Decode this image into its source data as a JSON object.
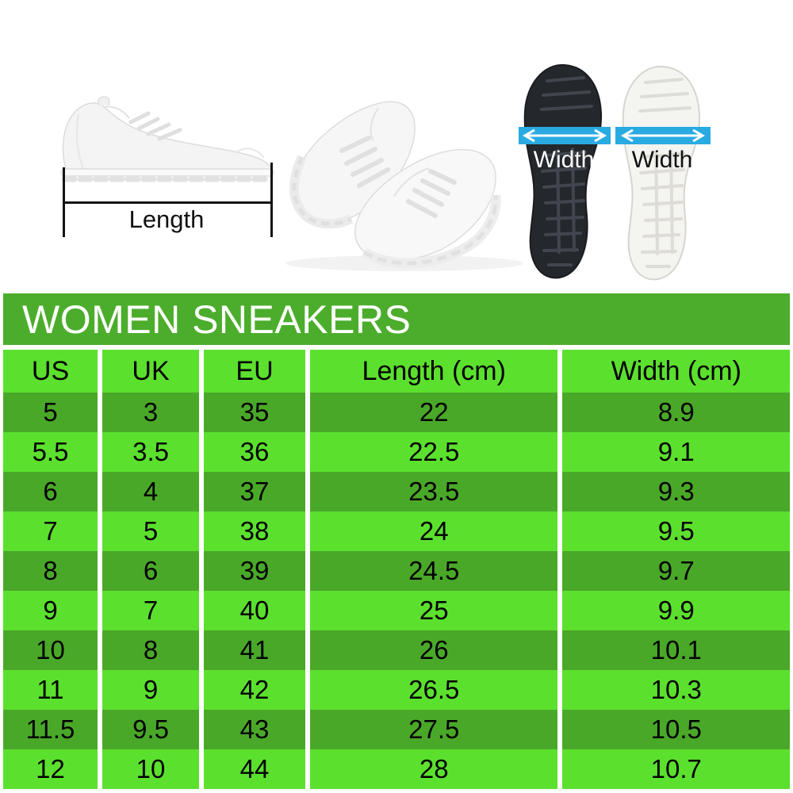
{
  "title": "WOMEN SNEAKERS",
  "figures": {
    "length_label": "Length",
    "width_label_black_sole": "Width",
    "width_label_white_sole": "Width"
  },
  "chart_data": {
    "type": "table",
    "title": "WOMEN SNEAKERS",
    "columns": [
      "US",
      "UK",
      "EU",
      "Length (cm)",
      "Width (cm)"
    ],
    "rows": [
      [
        "5",
        "3",
        "35",
        "22",
        "8.9"
      ],
      [
        "5.5",
        "3.5",
        "36",
        "22.5",
        "9.1"
      ],
      [
        "6",
        "4",
        "37",
        "23.5",
        "9.3"
      ],
      [
        "7",
        "5",
        "38",
        "24",
        "9.5"
      ],
      [
        "8",
        "6",
        "39",
        "24.5",
        "9.7"
      ],
      [
        "9",
        "7",
        "40",
        "25",
        "9.9"
      ],
      [
        "10",
        "8",
        "41",
        "26",
        "10.1"
      ],
      [
        "11",
        "9",
        "42",
        "26.5",
        "10.3"
      ],
      [
        "11.5",
        "9.5",
        "43",
        "27.5",
        "10.5"
      ],
      [
        "12",
        "10",
        "44",
        "28",
        "10.7"
      ]
    ]
  },
  "colors": {
    "title_band_green": "#4CAD2C",
    "row_dark_green": "#4AA829",
    "row_light_green": "#5CE02E",
    "width_band_cyan": "#29ABE2",
    "measure_line_black": "#141414"
  }
}
